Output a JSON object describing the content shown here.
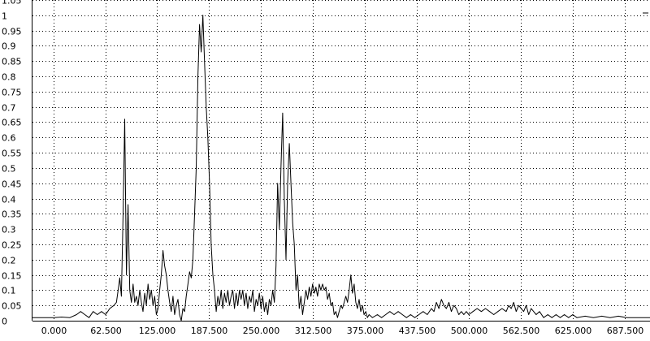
{
  "colors": {
    "background": "#ffffff",
    "line": "#000000",
    "grid": "#000000",
    "axis": "#000000"
  },
  "chart_data": {
    "type": "line",
    "title": "",
    "xlabel": "",
    "ylabel": "",
    "grid": true,
    "grid_style": "dotted",
    "xlim": [
      -25,
      718
    ],
    "ylim": [
      0,
      1.05
    ],
    "x_ticks": [
      "0.000",
      "62.500",
      "125.000",
      "187.500",
      "250.000",
      "312.500",
      "375.000",
      "437.500",
      "500.000",
      "562.500",
      "625.000",
      "687.500"
    ],
    "x_tick_values": [
      0,
      62.5,
      125,
      187.5,
      250,
      312.5,
      375,
      437.5,
      500,
      562.5,
      625,
      687.5
    ],
    "y_ticks": [
      "0",
      "0.05",
      "0.1",
      "0.15",
      "0.2",
      "0.25",
      "0.3",
      "0.35",
      "0.4",
      "0.45",
      "0.5",
      "0.55",
      "0.6",
      "0.65",
      "0.7",
      "0.75",
      "0.8",
      "0.85",
      "0.9",
      "0.95",
      "1",
      "1.05"
    ],
    "y_tick_values": [
      0,
      0.05,
      0.1,
      0.15,
      0.2,
      0.25,
      0.3,
      0.35,
      0.4,
      0.45,
      0.5,
      0.55,
      0.6,
      0.65,
      0.7,
      0.75,
      0.8,
      0.85,
      0.9,
      0.95,
      1,
      1.05
    ],
    "series": [
      {
        "points": [
          [
            -25,
            0.01
          ],
          [
            -10,
            0.01
          ],
          [
            0,
            0.01
          ],
          [
            10,
            0.012
          ],
          [
            20,
            0.01
          ],
          [
            28,
            0.02
          ],
          [
            33,
            0.03
          ],
          [
            38,
            0.02
          ],
          [
            43,
            0.01
          ],
          [
            48,
            0.03
          ],
          [
            53,
            0.02
          ],
          [
            58,
            0.03
          ],
          [
            63,
            0.02
          ],
          [
            68,
            0.04
          ],
          [
            73,
            0.05
          ],
          [
            76,
            0.06
          ],
          [
            78,
            0.1
          ],
          [
            80,
            0.14
          ],
          [
            82,
            0.08
          ],
          [
            84,
            0.35
          ],
          [
            86,
            0.66
          ],
          [
            88,
            0.15
          ],
          [
            90,
            0.38
          ],
          [
            92,
            0.1
          ],
          [
            94,
            0.06
          ],
          [
            96,
            0.12
          ],
          [
            98,
            0.06
          ],
          [
            100,
            0.08
          ],
          [
            102,
            0.05
          ],
          [
            104,
            0.1
          ],
          [
            106,
            0.06
          ],
          [
            108,
            0.03
          ],
          [
            110,
            0.09
          ],
          [
            112,
            0.05
          ],
          [
            114,
            0.12
          ],
          [
            116,
            0.07
          ],
          [
            118,
            0.1
          ],
          [
            120,
            0.05
          ],
          [
            122,
            0.08
          ],
          [
            124,
            0.02
          ],
          [
            126,
            0.04
          ],
          [
            128,
            0.1
          ],
          [
            130,
            0.15
          ],
          [
            132,
            0.23
          ],
          [
            134,
            0.18
          ],
          [
            136,
            0.15
          ],
          [
            138,
            0.1
          ],
          [
            140,
            0.06
          ],
          [
            142,
            0.03
          ],
          [
            144,
            0.08
          ],
          [
            146,
            0.02
          ],
          [
            148,
            0.05
          ],
          [
            150,
            0.07
          ],
          [
            152,
            0.02
          ],
          [
            154,
            0.0
          ],
          [
            156,
            0.04
          ],
          [
            158,
            0.03
          ],
          [
            160,
            0.08
          ],
          [
            162,
            0.12
          ],
          [
            164,
            0.16
          ],
          [
            166,
            0.14
          ],
          [
            168,
            0.2
          ],
          [
            170,
            0.35
          ],
          [
            172,
            0.5
          ],
          [
            174,
            0.8
          ],
          [
            176,
            0.97
          ],
          [
            178,
            0.88
          ],
          [
            180,
            1.0
          ],
          [
            182,
            0.85
          ],
          [
            184,
            0.7
          ],
          [
            186,
            0.6
          ],
          [
            188,
            0.45
          ],
          [
            190,
            0.25
          ],
          [
            192,
            0.15
          ],
          [
            194,
            0.1
          ],
          [
            196,
            0.03
          ],
          [
            198,
            0.08
          ],
          [
            200,
            0.05
          ],
          [
            202,
            0.1
          ],
          [
            204,
            0.04
          ],
          [
            206,
            0.09
          ],
          [
            208,
            0.06
          ],
          [
            210,
            0.1
          ],
          [
            212,
            0.05
          ],
          [
            214,
            0.08
          ],
          [
            216,
            0.1
          ],
          [
            218,
            0.04
          ],
          [
            220,
            0.09
          ],
          [
            222,
            0.05
          ],
          [
            224,
            0.1
          ],
          [
            226,
            0.07
          ],
          [
            228,
            0.1
          ],
          [
            230,
            0.05
          ],
          [
            232,
            0.09
          ],
          [
            234,
            0.04
          ],
          [
            236,
            0.08
          ],
          [
            238,
            0.06
          ],
          [
            240,
            0.1
          ],
          [
            242,
            0.03
          ],
          [
            244,
            0.07
          ],
          [
            246,
            0.05
          ],
          [
            248,
            0.09
          ],
          [
            250,
            0.04
          ],
          [
            252,
            0.08
          ],
          [
            254,
            0.03
          ],
          [
            256,
            0.06
          ],
          [
            258,
            0.02
          ],
          [
            260,
            0.07
          ],
          [
            262,
            0.05
          ],
          [
            264,
            0.1
          ],
          [
            266,
            0.06
          ],
          [
            268,
            0.18
          ],
          [
            270,
            0.45
          ],
          [
            272,
            0.3
          ],
          [
            274,
            0.5
          ],
          [
            276,
            0.68
          ],
          [
            278,
            0.4
          ],
          [
            280,
            0.2
          ],
          [
            282,
            0.45
          ],
          [
            284,
            0.58
          ],
          [
            286,
            0.45
          ],
          [
            288,
            0.32
          ],
          [
            290,
            0.25
          ],
          [
            292,
            0.1
          ],
          [
            294,
            0.15
          ],
          [
            296,
            0.04
          ],
          [
            298,
            0.08
          ],
          [
            300,
            0.02
          ],
          [
            302,
            0.06
          ],
          [
            304,
            0.1
          ],
          [
            306,
            0.07
          ],
          [
            308,
            0.11
          ],
          [
            310,
            0.08
          ],
          [
            312,
            0.12
          ],
          [
            314,
            0.09
          ],
          [
            316,
            0.11
          ],
          [
            318,
            0.08
          ],
          [
            320,
            0.12
          ],
          [
            322,
            0.1
          ],
          [
            324,
            0.12
          ],
          [
            326,
            0.1
          ],
          [
            328,
            0.11
          ],
          [
            330,
            0.07
          ],
          [
            332,
            0.09
          ],
          [
            334,
            0.05
          ],
          [
            336,
            0.06
          ],
          [
            338,
            0.02
          ],
          [
            340,
            0.03
          ],
          [
            342,
            0.01
          ],
          [
            344,
            0.03
          ],
          [
            346,
            0.05
          ],
          [
            348,
            0.04
          ],
          [
            350,
            0.06
          ],
          [
            352,
            0.08
          ],
          [
            354,
            0.06
          ],
          [
            356,
            0.1
          ],
          [
            358,
            0.15
          ],
          [
            360,
            0.09
          ],
          [
            362,
            0.12
          ],
          [
            364,
            0.06
          ],
          [
            366,
            0.04
          ],
          [
            368,
            0.07
          ],
          [
            370,
            0.03
          ],
          [
            372,
            0.05
          ],
          [
            374,
            0.02
          ],
          [
            376,
            0.03
          ],
          [
            378,
            0.01
          ],
          [
            380,
            0.02
          ],
          [
            384,
            0.01
          ],
          [
            390,
            0.02
          ],
          [
            395,
            0.01
          ],
          [
            400,
            0.02
          ],
          [
            405,
            0.03
          ],
          [
            410,
            0.02
          ],
          [
            415,
            0.03
          ],
          [
            420,
            0.02
          ],
          [
            425,
            0.01
          ],
          [
            430,
            0.02
          ],
          [
            435,
            0.01
          ],
          [
            440,
            0.02
          ],
          [
            445,
            0.03
          ],
          [
            450,
            0.02
          ],
          [
            455,
            0.04
          ],
          [
            458,
            0.03
          ],
          [
            461,
            0.06
          ],
          [
            464,
            0.04
          ],
          [
            467,
            0.07
          ],
          [
            470,
            0.05
          ],
          [
            473,
            0.04
          ],
          [
            476,
            0.06
          ],
          [
            479,
            0.03
          ],
          [
            482,
            0.05
          ],
          [
            485,
            0.04
          ],
          [
            488,
            0.02
          ],
          [
            491,
            0.03
          ],
          [
            494,
            0.02
          ],
          [
            497,
            0.03
          ],
          [
            500,
            0.02
          ],
          [
            505,
            0.03
          ],
          [
            510,
            0.04
          ],
          [
            515,
            0.03
          ],
          [
            520,
            0.04
          ],
          [
            525,
            0.03
          ],
          [
            530,
            0.02
          ],
          [
            535,
            0.03
          ],
          [
            540,
            0.04
          ],
          [
            545,
            0.03
          ],
          [
            548,
            0.05
          ],
          [
            551,
            0.04
          ],
          [
            554,
            0.06
          ],
          [
            557,
            0.03
          ],
          [
            560,
            0.05
          ],
          [
            563,
            0.04
          ],
          [
            566,
            0.03
          ],
          [
            569,
            0.05
          ],
          [
            572,
            0.02
          ],
          [
            575,
            0.04
          ],
          [
            578,
            0.03
          ],
          [
            581,
            0.02
          ],
          [
            585,
            0.03
          ],
          [
            590,
            0.01
          ],
          [
            595,
            0.02
          ],
          [
            600,
            0.01
          ],
          [
            605,
            0.02
          ],
          [
            610,
            0.01
          ],
          [
            615,
            0.02
          ],
          [
            620,
            0.01
          ],
          [
            625,
            0.02
          ],
          [
            630,
            0.01
          ],
          [
            640,
            0.015
          ],
          [
            650,
            0.01
          ],
          [
            660,
            0.015
          ],
          [
            670,
            0.01
          ],
          [
            680,
            0.015
          ],
          [
            690,
            0.01
          ],
          [
            700,
            0.01
          ],
          [
            710,
            0.01
          ],
          [
            718,
            0.01
          ]
        ]
      }
    ]
  }
}
